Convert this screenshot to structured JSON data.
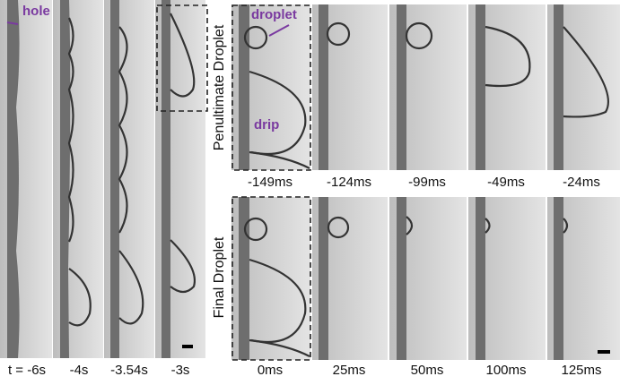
{
  "left_panel": {
    "labels": [
      "t = -6s",
      "-4s",
      "-3.54s",
      "-3s"
    ],
    "annotation": "hole"
  },
  "penultimate": {
    "title": "Penultimate Droplet",
    "labels": [
      "-149ms",
      "-124ms",
      "-99ms",
      "-49ms",
      "-24ms"
    ],
    "annotations": [
      "droplet",
      "drip"
    ]
  },
  "final": {
    "title": "Final Droplet",
    "labels": [
      "0ms",
      "25ms",
      "50ms",
      "100ms",
      "125ms"
    ]
  }
}
